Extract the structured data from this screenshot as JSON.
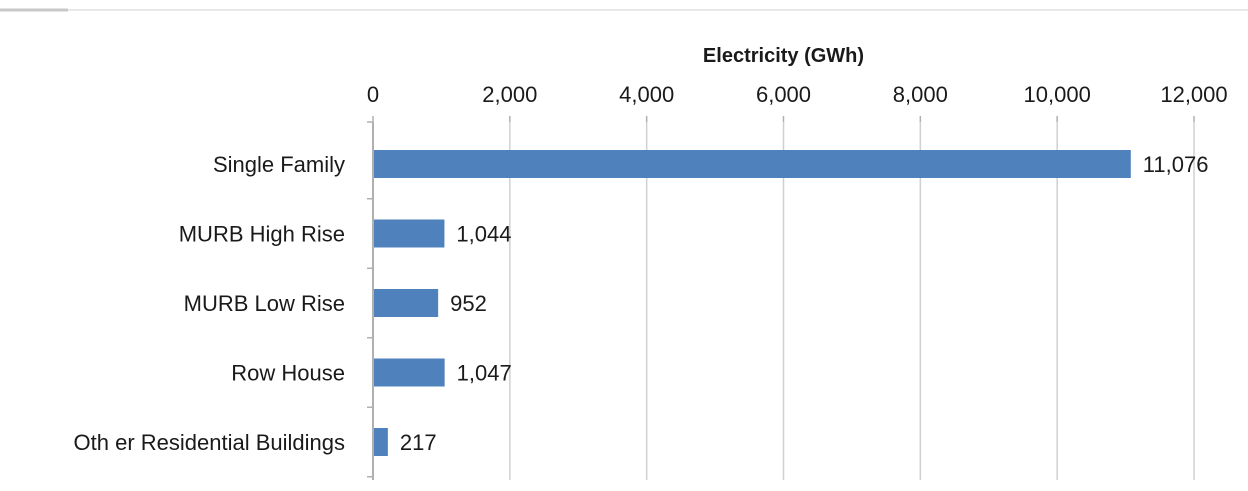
{
  "chart_data": {
    "type": "bar",
    "orientation": "horizontal",
    "title": "",
    "xlabel": "Electricity (GWh)",
    "ylabel": "",
    "xlim": [
      0,
      12000
    ],
    "xticks": [
      0,
      2000,
      4000,
      6000,
      8000,
      10000,
      12000
    ],
    "xtick_labels": [
      "0",
      "2,000",
      "4,000",
      "6,000",
      "8,000",
      "10,000",
      "12,000"
    ],
    "axis_position": "top",
    "grid": true,
    "categories": [
      "Single Family",
      "MURB High Rise",
      "MURB Low Rise",
      "Row House",
      "Oth er Residential Buildings"
    ],
    "values": [
      11076,
      1044,
      952,
      1047,
      217
    ],
    "data_labels": [
      "11,076",
      "1,044",
      "952",
      "1,047",
      "217"
    ],
    "bar_color": "#4f81bd"
  }
}
